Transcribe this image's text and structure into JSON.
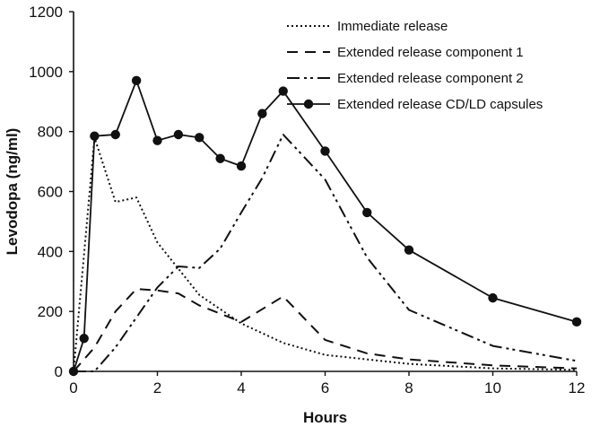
{
  "chart_data": {
    "type": "line",
    "title": "",
    "xlabel": "Hours",
    "ylabel": "Levodopa (ng/ml)",
    "xlim": [
      0,
      12
    ],
    "ylim": [
      0,
      1200
    ],
    "x_ticks": [
      0,
      2,
      4,
      6,
      8,
      10,
      12
    ],
    "y_ticks": [
      0,
      200,
      400,
      600,
      800,
      1000,
      1200
    ],
    "grid": false,
    "legend_position": "top-right",
    "series": [
      {
        "name": "Immediate release",
        "style": "dotted",
        "color": "#111111",
        "x": [
          0,
          0.5,
          1,
          1.5,
          2,
          3,
          4,
          5,
          6,
          8,
          10,
          12
        ],
        "y": [
          0,
          780,
          565,
          580,
          430,
          255,
          160,
          95,
          55,
          25,
          10,
          5
        ]
      },
      {
        "name": "Extended release component 1",
        "style": "dashed",
        "color": "#111111",
        "x": [
          0,
          0.5,
          1,
          1.5,
          2,
          2.5,
          3,
          4,
          5,
          6,
          7,
          8,
          10,
          12
        ],
        "y": [
          0,
          80,
          200,
          275,
          270,
          260,
          220,
          165,
          250,
          105,
          60,
          40,
          20,
          10
        ]
      },
      {
        "name": "Extended release component 2",
        "style": "dash-dot-dot",
        "color": "#111111",
        "x": [
          0,
          0.5,
          1,
          1.5,
          2,
          2.5,
          3,
          3.5,
          4,
          4.5,
          5,
          6,
          7,
          8,
          10,
          12
        ],
        "y": [
          0,
          0,
          80,
          180,
          280,
          350,
          345,
          410,
          530,
          645,
          790,
          640,
          380,
          205,
          85,
          35
        ]
      },
      {
        "name": "Extended release CD/LD capsules",
        "style": "solid-markers",
        "color": "#111111",
        "x": [
          0,
          0.25,
          0.5,
          1,
          1.5,
          2,
          2.5,
          3,
          3.5,
          4,
          4.5,
          5,
          6,
          7,
          8,
          10,
          12
        ],
        "y": [
          0,
          110,
          785,
          790,
          970,
          770,
          790,
          780,
          710,
          685,
          860,
          935,
          735,
          530,
          405,
          245,
          165
        ]
      }
    ]
  }
}
